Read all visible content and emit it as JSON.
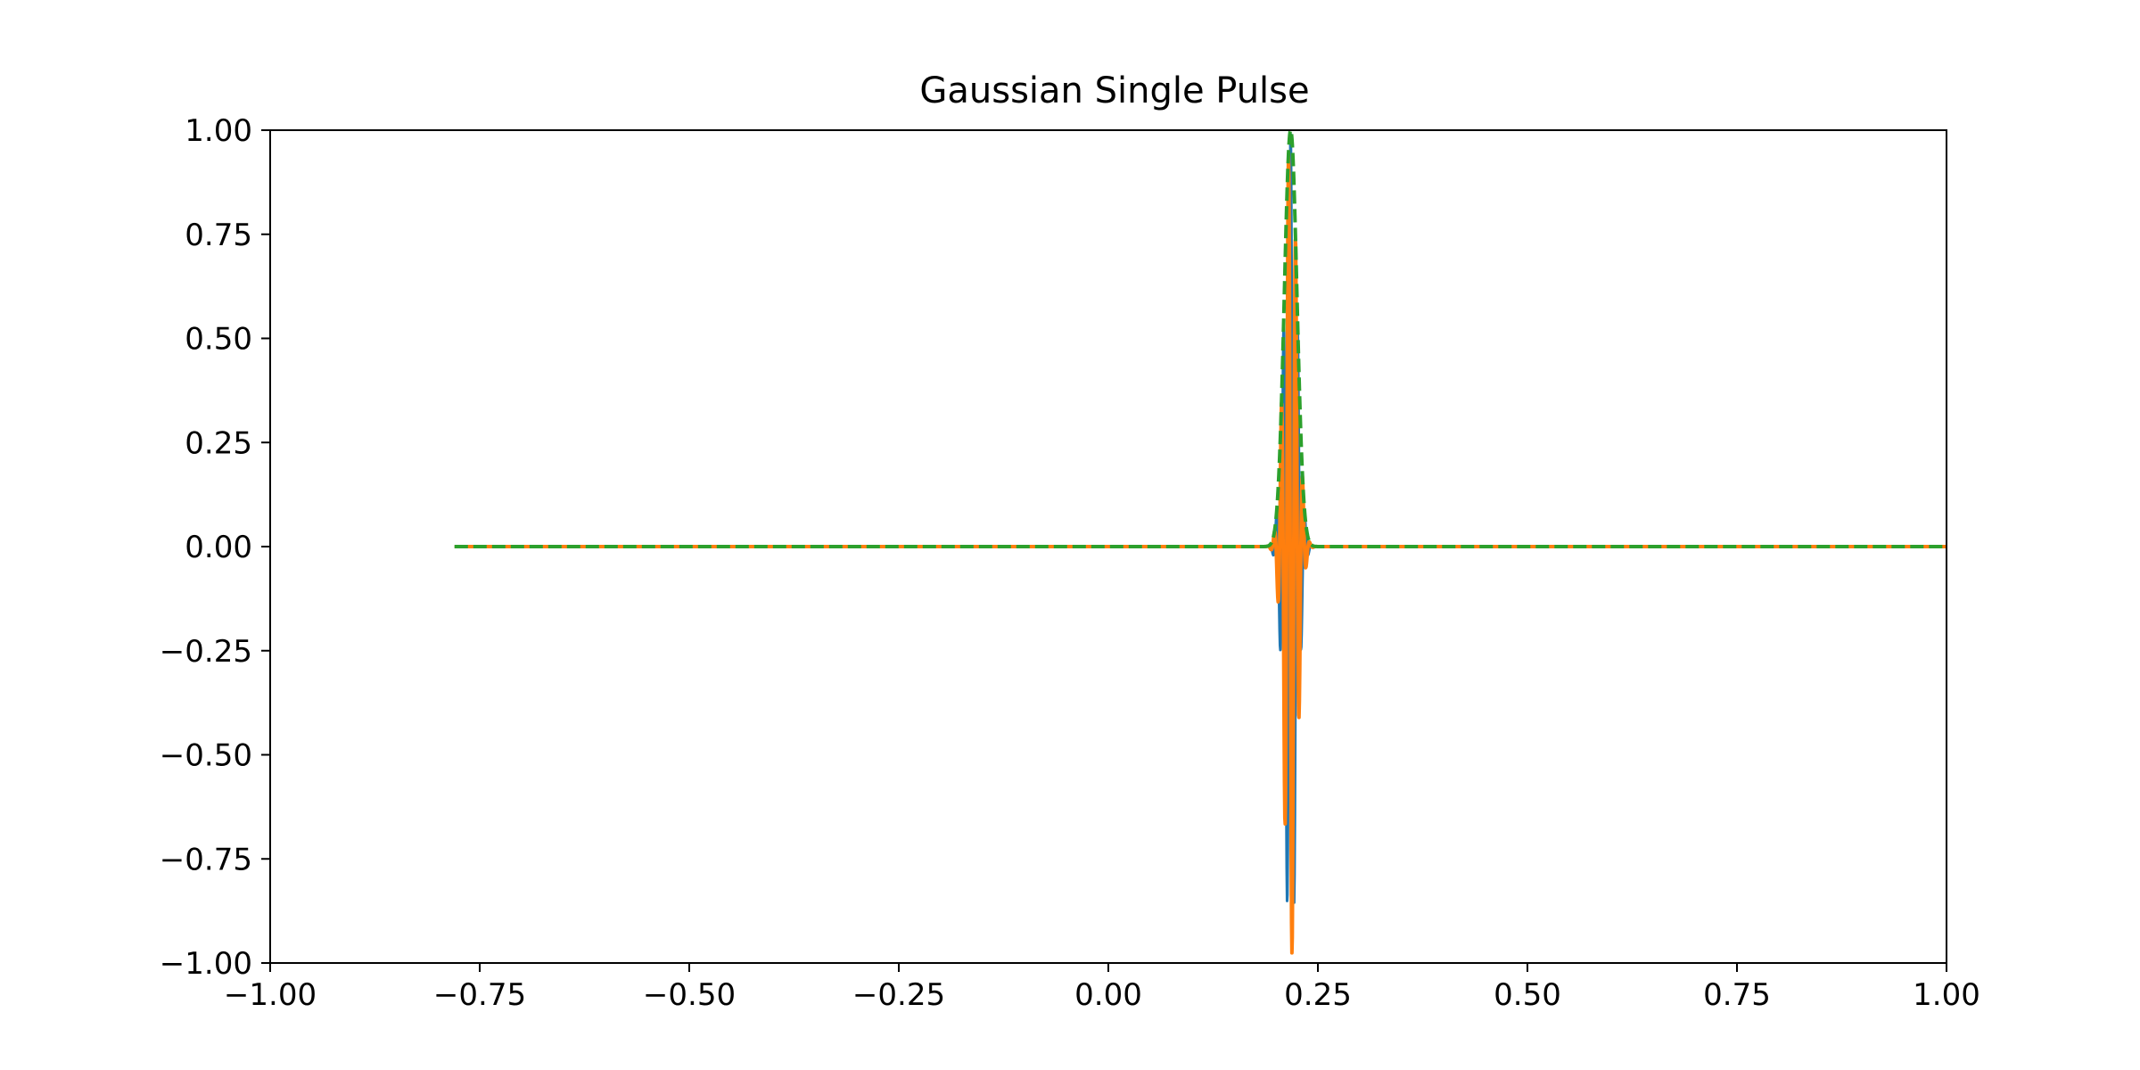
{
  "chart_data": {
    "type": "line",
    "title": "Gaussian Single Pulse",
    "xlabel": "",
    "ylabel": "",
    "xlim": [
      -1.0,
      1.0
    ],
    "ylim": [
      -1.0,
      1.0
    ],
    "grid": false,
    "xticks": [
      "−1.00",
      "−0.75",
      "−0.50",
      "−0.25",
      "0.00",
      "0.25",
      "0.50",
      "0.75",
      "1.00"
    ],
    "yticks": [
      "1.00",
      "0.75",
      "0.50",
      "0.25",
      "0.00",
      "−0.25",
      "−0.50",
      "−0.75",
      "−1.00"
    ],
    "xtick_values": [
      -1.0,
      -0.75,
      -0.5,
      -0.25,
      0.0,
      0.25,
      0.5,
      0.75,
      1.0
    ],
    "ytick_values": [
      1.0,
      0.75,
      0.5,
      0.25,
      0.0,
      -0.25,
      -0.5,
      -0.75,
      -1.0
    ],
    "pulse": {
      "x_start": -0.78,
      "x_end": 1.0,
      "center": 0.2175,
      "peak_amplitude": 1.0,
      "sigma": 0.0075,
      "carrier_frequency": 118
    },
    "series": [
      {
        "style": "solid",
        "color": "#1f77b4",
        "component": "real",
        "line_width": 3
      },
      {
        "style": "solid",
        "color": "#ff7f0e",
        "component": "imag",
        "line_width": 4
      },
      {
        "style": "dashed",
        "color": "#2ca02c",
        "component": "envelope",
        "line_width": 4
      }
    ]
  }
}
